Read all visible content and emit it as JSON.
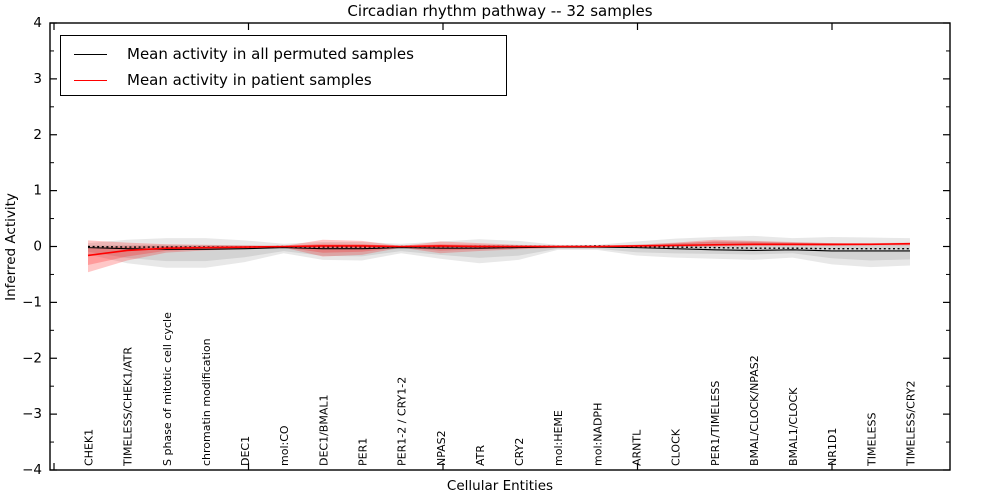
{
  "chart_data": {
    "type": "line",
    "title": "Circadian rhythm pathway -- 32 samples",
    "xlabel": "Cellular Entities",
    "ylabel": "Inferred Activity",
    "ylim": [
      -4,
      4
    ],
    "ytick_labels": [
      "4",
      "3",
      "2",
      "1",
      "0",
      "−1",
      "−2",
      "−3",
      "−4"
    ],
    "ytick_values": [
      4,
      3,
      2,
      1,
      0,
      -1,
      -2,
      -3,
      -4
    ],
    "grid": false,
    "legend_position": "upper-left",
    "categories": [
      "CHEK1",
      "TIMELESS/CHEK1/ATR",
      "S phase of mitotic cell cycle",
      "chromatin modification",
      "DEC1",
      "mol:CO",
      "DEC1/BMAL1",
      "PER1",
      "PER1-2 / CRY1-2",
      "NPAS2",
      "ATR",
      "CRY2",
      "mol:HEME",
      "mol:NADPH",
      "ARNTL",
      "CLOCK",
      "PER1/TIMELESS",
      "BMAL/CLOCK/NPAS2",
      "BMAL1/CLOCK",
      "NR1D1",
      "TIMELESS",
      "TIMELESS/CRY2"
    ],
    "series": [
      {
        "name": "permuted-mean",
        "label": "Mean activity in all permuted samples",
        "color": "#000000",
        "style": "solid",
        "width": 1.1,
        "values": [
          -0.02,
          -0.04,
          -0.05,
          -0.05,
          -0.04,
          -0.02,
          -0.04,
          -0.04,
          -0.02,
          -0.03,
          -0.03,
          -0.02,
          -0.01,
          -0.01,
          -0.02,
          -0.04,
          -0.06,
          -0.07,
          -0.06,
          -0.08,
          -0.08,
          -0.08
        ]
      },
      {
        "name": "permuted-median",
        "label": "",
        "color": "#000000",
        "style": "dotted",
        "width": 1.4,
        "values": [
          0,
          -0.01,
          -0.01,
          -0.01,
          -0.01,
          0,
          -0.01,
          -0.01,
          0,
          0,
          0,
          0,
          0,
          0.01,
          0,
          -0.01,
          -0.02,
          -0.03,
          -0.03,
          -0.04,
          -0.04,
          -0.04
        ]
      },
      {
        "name": "patient-mean",
        "label": "Mean activity in patient samples",
        "color": "#ff0000",
        "style": "solid",
        "width": 1.6,
        "values": [
          -0.16,
          -0.07,
          -0.03,
          -0.02,
          -0.01,
          0,
          0.01,
          0.01,
          0,
          0.01,
          0,
          0,
          0,
          0,
          0.01,
          0.02,
          0.03,
          0.04,
          0.04,
          0.04,
          0.04,
          0.05
        ]
      }
    ],
    "bands": [
      {
        "name": "permuted-spread",
        "color": "rgba(0,0,0,0.09)",
        "upper": [
          0.06,
          0.12,
          0.15,
          0.15,
          0.11,
          0.05,
          0.08,
          0.08,
          0.05,
          0.09,
          0.13,
          0.1,
          0.03,
          0.03,
          0.09,
          0.14,
          0.17,
          0.19,
          0.15,
          0.17,
          0.16,
          0.15
        ],
        "lower": [
          -0.14,
          -0.3,
          -0.38,
          -0.38,
          -0.28,
          -0.12,
          -0.24,
          -0.25,
          -0.12,
          -0.22,
          -0.3,
          -0.24,
          -0.06,
          -0.06,
          -0.16,
          -0.2,
          -0.22,
          -0.24,
          -0.2,
          -0.32,
          -0.37,
          -0.34
        ]
      },
      {
        "name": "patient-spread",
        "color": "rgba(255,0,0,0.22)",
        "upper": [
          0.11,
          0.07,
          0.04,
          0.03,
          0.02,
          0.01,
          0.12,
          0.1,
          0.01,
          0.09,
          0.06,
          0.03,
          0.02,
          0.02,
          0.03,
          0.07,
          0.12,
          0.1,
          0.08,
          0.06,
          0.06,
          0.07
        ],
        "lower": [
          -0.46,
          -0.25,
          -0.11,
          -0.07,
          -0.05,
          -0.02,
          -0.18,
          -0.15,
          -0.02,
          -0.12,
          -0.08,
          -0.05,
          -0.03,
          -0.03,
          -0.02,
          -0.01,
          0,
          0.01,
          0.01,
          0.01,
          0.02,
          0.02
        ]
      }
    ],
    "legend": [
      {
        "label": "Mean activity in all permuted samples",
        "color": "#000000"
      },
      {
        "label": "Mean activity in patient samples",
        "color": "#ff0000"
      }
    ]
  }
}
